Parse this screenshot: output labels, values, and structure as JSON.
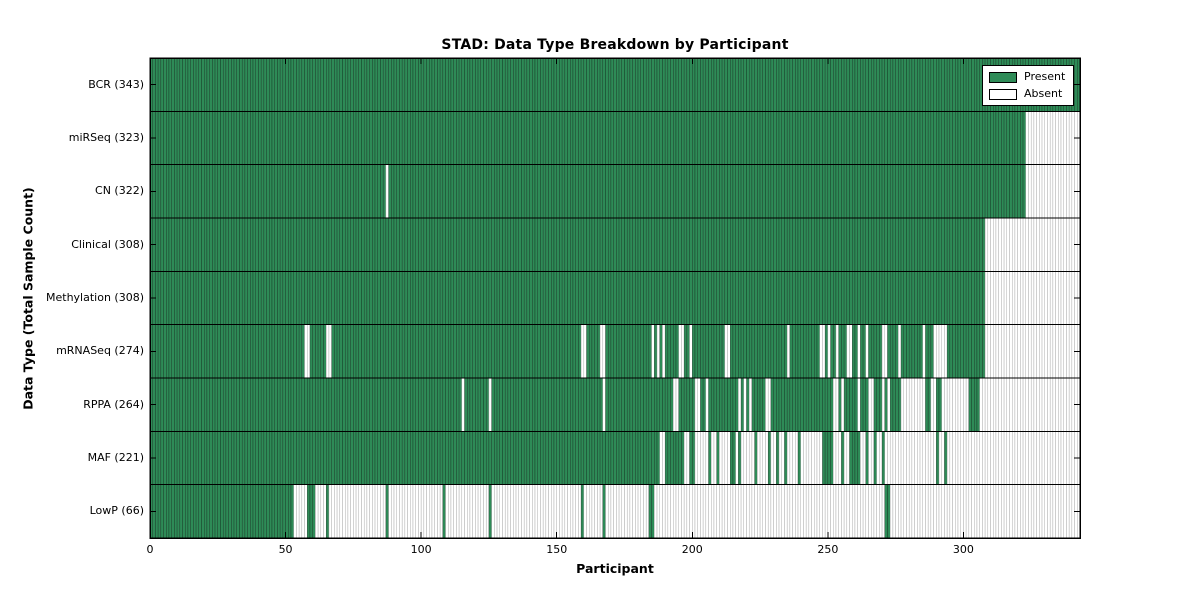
{
  "chart_data": {
    "type": "heatmap",
    "title": "STAD: Data Type Breakdown by Participant",
    "xlabel": "Participant",
    "ylabel": "Data Type (Total Sample Count)",
    "n_participants": 343,
    "x_ticks": [
      0,
      50,
      100,
      150,
      200,
      250,
      300
    ],
    "legend": [
      {
        "label": "Present",
        "color": "#2E8B57"
      },
      {
        "label": "Absent",
        "color": "#FFFFFF"
      }
    ],
    "colors": {
      "present_fill": "#2E8B57",
      "present_edge": "rgba(0,0,0,0.55)",
      "absent_fill": "#FFFFFF",
      "absent_edge": "#A8A8A8",
      "frame": "#000000"
    },
    "rows": [
      {
        "label": "BCR (343)",
        "count": 343,
        "absent_runs": []
      },
      {
        "label": "miRSeq (323)",
        "count": 323,
        "absent_runs": [
          [
            323,
            342
          ]
        ]
      },
      {
        "label": "CN (322)",
        "count": 322,
        "absent_runs": [
          [
            87,
            87
          ],
          [
            323,
            342
          ]
        ]
      },
      {
        "label": "Clinical (308)",
        "count": 308,
        "absent_runs": [
          [
            308,
            342
          ]
        ]
      },
      {
        "label": "Methylation (308)",
        "count": 308,
        "absent_runs": [
          [
            308,
            342
          ]
        ]
      },
      {
        "label": "mRNASeq (274)",
        "count": 274,
        "absent_runs": [
          [
            57,
            58
          ],
          [
            65,
            66
          ],
          [
            159,
            160
          ],
          [
            166,
            167
          ],
          [
            185,
            185
          ],
          [
            187,
            187
          ],
          [
            189,
            189
          ],
          [
            195,
            196
          ],
          [
            199,
            199
          ],
          [
            212,
            213
          ],
          [
            235,
            235
          ],
          [
            247,
            248
          ],
          [
            250,
            250
          ],
          [
            253,
            253
          ],
          [
            257,
            258
          ],
          [
            261,
            261
          ],
          [
            264,
            264
          ],
          [
            270,
            271
          ],
          [
            276,
            276
          ],
          [
            285,
            285
          ],
          [
            289,
            293
          ],
          [
            308,
            342
          ]
        ]
      },
      {
        "label": "RPPA (264)",
        "count": 264,
        "absent_runs": [
          [
            115,
            115
          ],
          [
            125,
            125
          ],
          [
            167,
            167
          ],
          [
            193,
            194
          ],
          [
            201,
            202
          ],
          [
            205,
            205
          ],
          [
            217,
            217
          ],
          [
            219,
            219
          ],
          [
            221,
            221
          ],
          [
            227,
            228
          ],
          [
            252,
            253
          ],
          [
            255,
            255
          ],
          [
            261,
            261
          ],
          [
            265,
            266
          ],
          [
            270,
            270
          ],
          [
            272,
            272
          ],
          [
            277,
            285
          ],
          [
            288,
            289
          ],
          [
            292,
            301
          ],
          [
            306,
            342
          ]
        ]
      },
      {
        "label": "MAF (221)",
        "count": 221,
        "absent_runs": [
          [
            188,
            189
          ],
          [
            197,
            198
          ],
          [
            201,
            205
          ],
          [
            207,
            208
          ],
          [
            210,
            213
          ],
          [
            216,
            216
          ],
          [
            218,
            222
          ],
          [
            224,
            227
          ],
          [
            229,
            230
          ],
          [
            232,
            233
          ],
          [
            235,
            238
          ],
          [
            240,
            247
          ],
          [
            252,
            254
          ],
          [
            256,
            257
          ],
          [
            262,
            263
          ],
          [
            265,
            266
          ],
          [
            268,
            269
          ],
          [
            271,
            289
          ],
          [
            291,
            292
          ],
          [
            294,
            342
          ]
        ]
      },
      {
        "label": "LowP (66)",
        "count": 66,
        "absent_runs": [
          [
            53,
            57
          ],
          [
            61,
            64
          ],
          [
            66,
            86
          ],
          [
            88,
            107
          ],
          [
            109,
            124
          ],
          [
            126,
            158
          ],
          [
            160,
            166
          ],
          [
            168,
            183
          ],
          [
            186,
            270
          ],
          [
            273,
            342
          ]
        ]
      }
    ]
  }
}
